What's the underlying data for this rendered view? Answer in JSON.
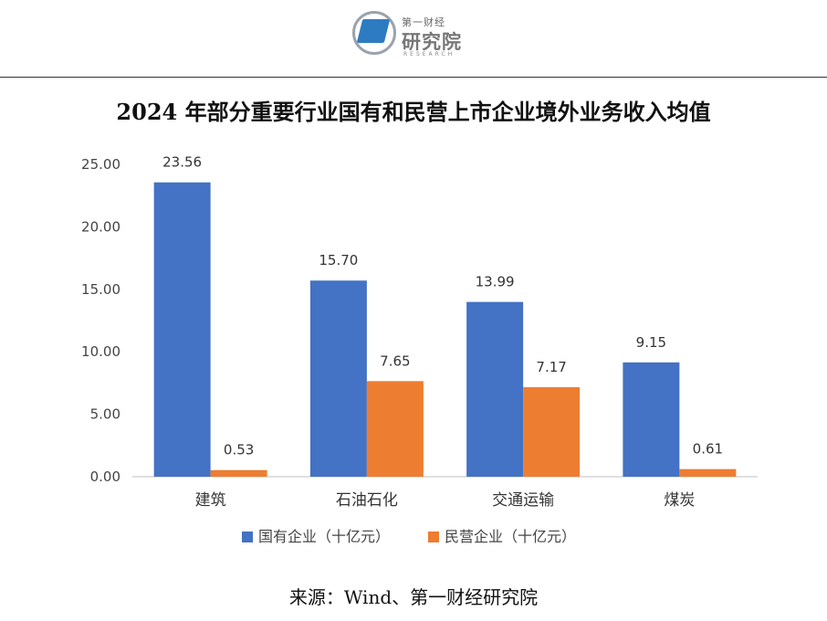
{
  "logo": {
    "small_text": "第一财经",
    "big_text": "研究院",
    "en_text": "RESEARCH"
  },
  "chart_data": {
    "type": "bar",
    "title": "2024 年部分重要行业国有和民营上市企业境外业务收入均值",
    "categories": [
      "建筑",
      "石油石化",
      "交通运输",
      "煤炭"
    ],
    "series": [
      {
        "name": "国有企业（十亿元）",
        "color": "#4472C4",
        "values": [
          23.56,
          15.7,
          13.99,
          9.15
        ]
      },
      {
        "name": "民营企业（十亿元）",
        "color": "#ED7D31",
        "values": [
          0.53,
          7.65,
          7.17,
          0.61
        ]
      }
    ],
    "ylim": [
      0,
      25
    ],
    "yticks": [
      0,
      5,
      10,
      15,
      20,
      25
    ],
    "ytick_labels": [
      "0.00",
      "5.00",
      "10.00",
      "15.00",
      "20.00",
      "25.00"
    ],
    "xlabel": "",
    "ylabel": "",
    "legend_position": "bottom-center",
    "grid": false
  },
  "source": "来源：Wind、第一财经研究院"
}
